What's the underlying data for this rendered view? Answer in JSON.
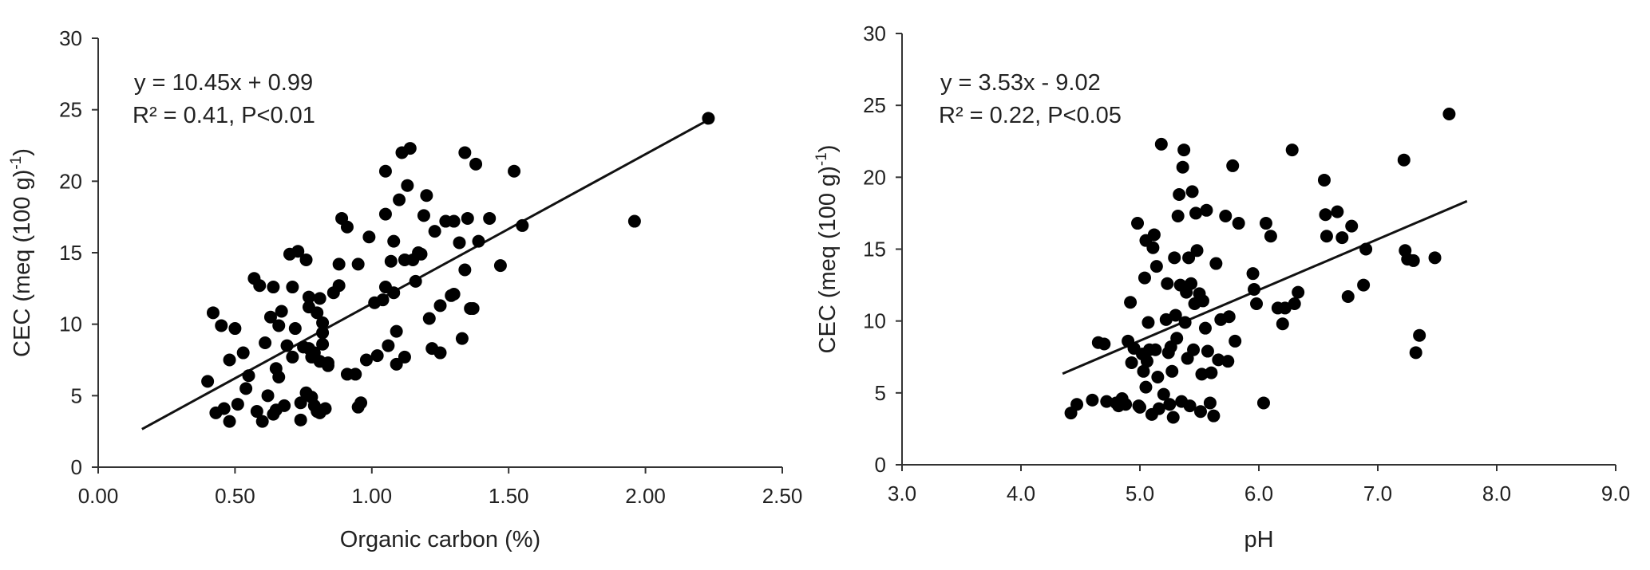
{
  "chart_data": [
    {
      "type": "scatter",
      "xlabel": "Organic carbon (%)",
      "ylabel": "CEC (meq (100 g)",
      "ylabel_sup": "-1",
      "ylabel_close": ")",
      "xlim": [
        0,
        2.5
      ],
      "ylim": [
        0,
        30
      ],
      "xticks": [
        0,
        0.5,
        1.0,
        1.5,
        2.0,
        2.5
      ],
      "xtick_labels": [
        "0.00",
        "0.50",
        "1.00",
        "1.50",
        "2.00",
        "2.50"
      ],
      "yticks": [
        0,
        5,
        10,
        15,
        20,
        25,
        30
      ],
      "ytick_labels": [
        "0",
        "5",
        "10",
        "15",
        "20",
        "25",
        "30"
      ],
      "grid": false,
      "equation": "y = 10.45x + 0.99",
      "r2_text": "R² = 0.41, P<0.01",
      "trendline": {
        "slope": 10.45,
        "intercept": 0.99,
        "x_range": [
          0.16,
          2.23
        ]
      },
      "points": [
        [
          0.4,
          6.0
        ],
        [
          0.42,
          10.8
        ],
        [
          0.43,
          3.8
        ],
        [
          0.45,
          9.9
        ],
        [
          0.46,
          4.1
        ],
        [
          0.48,
          3.2
        ],
        [
          0.48,
          7.5
        ],
        [
          0.5,
          9.7
        ],
        [
          0.51,
          4.4
        ],
        [
          0.53,
          8.0
        ],
        [
          0.54,
          5.5
        ],
        [
          0.55,
          6.4
        ],
        [
          0.57,
          13.2
        ],
        [
          0.58,
          3.9
        ],
        [
          0.59,
          12.7
        ],
        [
          0.6,
          3.2
        ],
        [
          0.61,
          8.7
        ],
        [
          0.62,
          5.0
        ],
        [
          0.63,
          10.5
        ],
        [
          0.64,
          12.6
        ],
        [
          0.64,
          3.7
        ],
        [
          0.65,
          4.0
        ],
        [
          0.65,
          6.9
        ],
        [
          0.66,
          6.3
        ],
        [
          0.66,
          9.9
        ],
        [
          0.67,
          10.9
        ],
        [
          0.68,
          4.3
        ],
        [
          0.69,
          8.5
        ],
        [
          0.7,
          14.9
        ],
        [
          0.71,
          12.6
        ],
        [
          0.71,
          7.7
        ],
        [
          0.72,
          9.7
        ],
        [
          0.73,
          15.1
        ],
        [
          0.74,
          4.5
        ],
        [
          0.74,
          3.3
        ],
        [
          0.75,
          8.4
        ],
        [
          0.76,
          5.2
        ],
        [
          0.76,
          14.5
        ],
        [
          0.77,
          11.9
        ],
        [
          0.77,
          8.3
        ],
        [
          0.77,
          11.2
        ],
        [
          0.78,
          4.9
        ],
        [
          0.78,
          7.7
        ],
        [
          0.79,
          4.3
        ],
        [
          0.79,
          8.0
        ],
        [
          0.8,
          3.9
        ],
        [
          0.8,
          10.8
        ],
        [
          0.81,
          7.4
        ],
        [
          0.81,
          3.8
        ],
        [
          0.81,
          11.8
        ],
        [
          0.82,
          8.6
        ],
        [
          0.82,
          10.1
        ],
        [
          0.82,
          9.4
        ],
        [
          0.83,
          4.1
        ],
        [
          0.84,
          7.3
        ],
        [
          0.84,
          7.1
        ],
        [
          0.86,
          12.2
        ],
        [
          0.88,
          14.2
        ],
        [
          0.88,
          12.7
        ],
        [
          0.89,
          17.4
        ],
        [
          0.91,
          16.8
        ],
        [
          0.91,
          6.5
        ],
        [
          0.94,
          6.5
        ],
        [
          0.95,
          14.2
        ],
        [
          0.95,
          4.2
        ],
        [
          0.96,
          4.5
        ],
        [
          0.98,
          7.5
        ],
        [
          0.99,
          16.1
        ],
        [
          1.01,
          11.5
        ],
        [
          1.02,
          7.8
        ],
        [
          1.04,
          11.7
        ],
        [
          1.05,
          12.6
        ],
        [
          1.05,
          17.7
        ],
        [
          1.05,
          20.7
        ],
        [
          1.06,
          8.5
        ],
        [
          1.07,
          14.4
        ],
        [
          1.08,
          12.2
        ],
        [
          1.08,
          15.8
        ],
        [
          1.09,
          9.5
        ],
        [
          1.09,
          7.2
        ],
        [
          1.1,
          18.7
        ],
        [
          1.11,
          22.0
        ],
        [
          1.12,
          7.7
        ],
        [
          1.12,
          14.5
        ],
        [
          1.13,
          19.7
        ],
        [
          1.14,
          22.3
        ],
        [
          1.15,
          14.5
        ],
        [
          1.16,
          13.0
        ],
        [
          1.17,
          15.0
        ],
        [
          1.18,
          14.9
        ],
        [
          1.19,
          17.6
        ],
        [
          1.2,
          19.0
        ],
        [
          1.21,
          10.4
        ],
        [
          1.22,
          8.3
        ],
        [
          1.23,
          16.5
        ],
        [
          1.25,
          11.3
        ],
        [
          1.25,
          8.0
        ],
        [
          1.27,
          17.2
        ],
        [
          1.29,
          12.0
        ],
        [
          1.3,
          12.1
        ],
        [
          1.3,
          17.2
        ],
        [
          1.32,
          15.7
        ],
        [
          1.33,
          9.0
        ],
        [
          1.34,
          13.8
        ],
        [
          1.34,
          22.0
        ],
        [
          1.35,
          17.4
        ],
        [
          1.36,
          11.1
        ],
        [
          1.37,
          11.1
        ],
        [
          1.38,
          21.2
        ],
        [
          1.39,
          15.8
        ],
        [
          1.43,
          17.4
        ],
        [
          1.47,
          14.1
        ],
        [
          1.52,
          20.7
        ],
        [
          1.55,
          16.9
        ],
        [
          1.96,
          17.2
        ],
        [
          2.23,
          24.4
        ]
      ]
    },
    {
      "type": "scatter",
      "xlabel": "pH",
      "ylabel": "CEC (meq (100 g)",
      "ylabel_sup": "-1",
      "ylabel_close": ")",
      "xlim": [
        3.0,
        9.0
      ],
      "ylim": [
        0,
        30
      ],
      "xticks": [
        3,
        4,
        5,
        6,
        7,
        8,
        9
      ],
      "xtick_labels": [
        "3.0",
        "4.0",
        "5.0",
        "6.0",
        "7.0",
        "8.0",
        "9.0"
      ],
      "yticks": [
        0,
        5,
        10,
        15,
        20,
        25,
        30
      ],
      "ytick_labels": [
        "0",
        "5",
        "10",
        "15",
        "20",
        "25",
        "30"
      ],
      "grid": false,
      "equation": "y = 3.53x - 9.02",
      "r2_text": "R² = 0.22, P<0.05",
      "trendline": {
        "slope": 3.53,
        "intercept": -9.02,
        "x_range": [
          4.35,
          7.75
        ]
      },
      "points": [
        [
          4.42,
          3.6
        ],
        [
          4.47,
          4.2
        ],
        [
          4.6,
          4.5
        ],
        [
          4.65,
          8.5
        ],
        [
          4.7,
          8.4
        ],
        [
          4.72,
          4.4
        ],
        [
          4.8,
          4.3
        ],
        [
          4.82,
          4.1
        ],
        [
          4.85,
          4.6
        ],
        [
          4.88,
          4.2
        ],
        [
          4.9,
          8.6
        ],
        [
          4.92,
          11.3
        ],
        [
          4.93,
          7.1
        ],
        [
          4.95,
          8.1
        ],
        [
          4.98,
          16.8
        ],
        [
          4.99,
          4.1
        ],
        [
          5.0,
          4.0
        ],
        [
          5.02,
          7.7
        ],
        [
          5.03,
          6.5
        ],
        [
          5.04,
          13.0
        ],
        [
          5.05,
          5.4
        ],
        [
          5.05,
          15.6
        ],
        [
          5.06,
          7.2
        ],
        [
          5.07,
          9.9
        ],
        [
          5.08,
          8.0
        ],
        [
          5.1,
          3.5
        ],
        [
          5.11,
          15.1
        ],
        [
          5.12,
          16.0
        ],
        [
          5.13,
          8.0
        ],
        [
          5.14,
          13.8
        ],
        [
          5.15,
          6.1
        ],
        [
          5.16,
          3.9
        ],
        [
          5.18,
          22.3
        ],
        [
          5.2,
          4.9
        ],
        [
          5.22,
          10.1
        ],
        [
          5.23,
          12.6
        ],
        [
          5.24,
          7.8
        ],
        [
          5.25,
          4.2
        ],
        [
          5.26,
          8.2
        ],
        [
          5.27,
          6.5
        ],
        [
          5.28,
          3.3
        ],
        [
          5.29,
          14.4
        ],
        [
          5.3,
          10.4
        ],
        [
          5.31,
          8.8
        ],
        [
          5.32,
          17.3
        ],
        [
          5.33,
          18.8
        ],
        [
          5.34,
          12.5
        ],
        [
          5.35,
          4.4
        ],
        [
          5.36,
          20.7
        ],
        [
          5.37,
          21.9
        ],
        [
          5.38,
          9.9
        ],
        [
          5.39,
          12.0
        ],
        [
          5.4,
          7.4
        ],
        [
          5.41,
          14.4
        ],
        [
          5.42,
          4.1
        ],
        [
          5.43,
          12.6
        ],
        [
          5.44,
          19.0
        ],
        [
          5.45,
          8.0
        ],
        [
          5.46,
          11.2
        ],
        [
          5.47,
          17.5
        ],
        [
          5.48,
          14.9
        ],
        [
          5.5,
          11.9
        ],
        [
          5.51,
          3.7
        ],
        [
          5.52,
          6.3
        ],
        [
          5.53,
          11.4
        ],
        [
          5.55,
          9.5
        ],
        [
          5.56,
          17.7
        ],
        [
          5.57,
          7.9
        ],
        [
          5.59,
          4.3
        ],
        [
          5.6,
          6.4
        ],
        [
          5.62,
          3.4
        ],
        [
          5.64,
          14.0
        ],
        [
          5.66,
          7.3
        ],
        [
          5.68,
          10.1
        ],
        [
          5.72,
          17.3
        ],
        [
          5.74,
          7.2
        ],
        [
          5.75,
          10.3
        ],
        [
          5.78,
          20.8
        ],
        [
          5.8,
          8.6
        ],
        [
          5.83,
          16.8
        ],
        [
          5.95,
          13.3
        ],
        [
          5.96,
          12.2
        ],
        [
          5.98,
          11.2
        ],
        [
          6.04,
          4.3
        ],
        [
          6.06,
          16.8
        ],
        [
          6.1,
          15.9
        ],
        [
          6.16,
          10.9
        ],
        [
          6.2,
          9.8
        ],
        [
          6.22,
          10.9
        ],
        [
          6.28,
          21.9
        ],
        [
          6.3,
          11.2
        ],
        [
          6.33,
          12.0
        ],
        [
          6.55,
          19.8
        ],
        [
          6.56,
          17.4
        ],
        [
          6.57,
          15.9
        ],
        [
          6.66,
          17.6
        ],
        [
          6.7,
          15.8
        ],
        [
          6.75,
          11.7
        ],
        [
          6.78,
          16.6
        ],
        [
          6.88,
          12.5
        ],
        [
          6.9,
          15.0
        ],
        [
          7.22,
          21.2
        ],
        [
          7.23,
          14.9
        ],
        [
          7.25,
          14.3
        ],
        [
          7.3,
          14.2
        ],
        [
          7.32,
          7.8
        ],
        [
          7.35,
          9.0
        ],
        [
          7.48,
          14.4
        ],
        [
          7.6,
          24.4
        ]
      ]
    }
  ]
}
